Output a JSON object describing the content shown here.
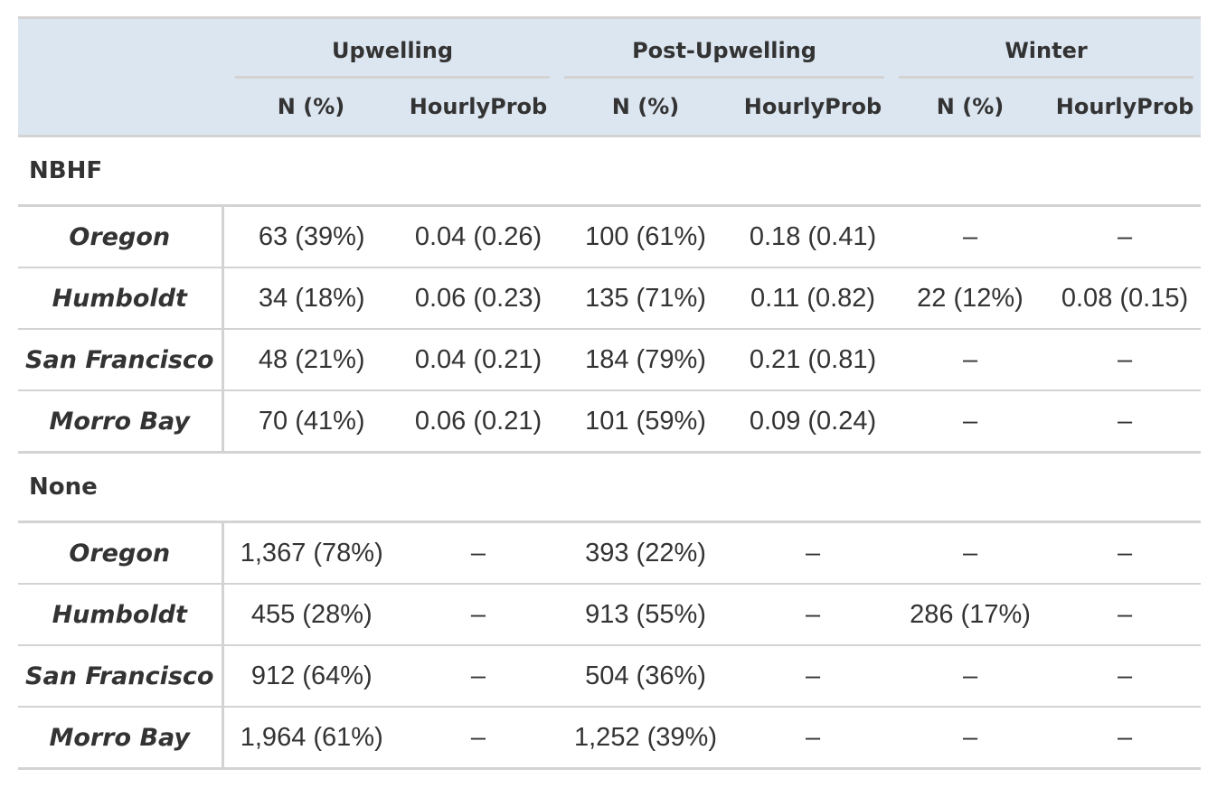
{
  "header": {
    "spanners": [
      "Upwelling",
      "Post-Upwelling",
      "Winter"
    ],
    "columns": [
      "N (%)",
      "HourlyProb",
      "N (%)",
      "HourlyProb",
      "N (%)",
      "HourlyProb"
    ]
  },
  "groups": [
    {
      "label": "NBHF",
      "rows": [
        {
          "site": "Oregon",
          "cells": [
            "63 (39%)",
            "0.04 (0.26)",
            "100 (61%)",
            "0.18 (0.41)",
            "–",
            "–"
          ]
        },
        {
          "site": "Humboldt",
          "cells": [
            "34 (18%)",
            "0.06 (0.23)",
            "135 (71%)",
            "0.11 (0.82)",
            "22 (12%)",
            "0.08 (0.15)"
          ]
        },
        {
          "site": "San Francisco",
          "cells": [
            "48 (21%)",
            "0.04 (0.21)",
            "184 (79%)",
            "0.21 (0.81)",
            "–",
            "–"
          ]
        },
        {
          "site": "Morro Bay",
          "cells": [
            "70 (41%)",
            "0.06 (0.21)",
            "101 (59%)",
            "0.09 (0.24)",
            "–",
            "–"
          ]
        }
      ]
    },
    {
      "label": "None",
      "rows": [
        {
          "site": "Oregon",
          "cells": [
            "1,367 (78%)",
            "–",
            "393 (22%)",
            "–",
            "–",
            "–"
          ]
        },
        {
          "site": "Humboldt",
          "cells": [
            "455 (28%)",
            "–",
            "913 (55%)",
            "–",
            "286 (17%)",
            "–"
          ]
        },
        {
          "site": "San Francisco",
          "cells": [
            "912 (64%)",
            "–",
            "504 (36%)",
            "–",
            "–",
            "–"
          ]
        },
        {
          "site": "Morro Bay",
          "cells": [
            "1,964 (61%)",
            "–",
            "1,252 (39%)",
            "–",
            "–",
            "–"
          ]
        }
      ]
    }
  ]
}
